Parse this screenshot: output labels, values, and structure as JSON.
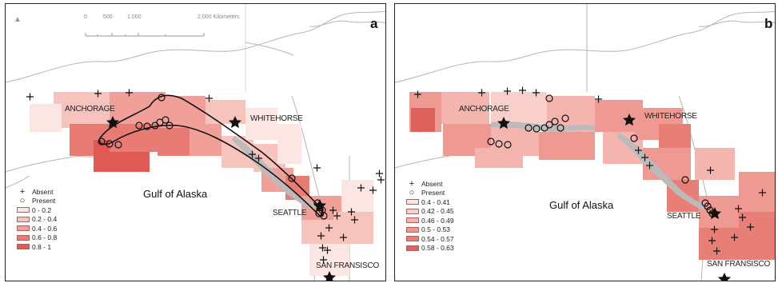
{
  "panels": [
    {
      "id": "a",
      "letter": "a",
      "scale": {
        "t0": "0",
        "t1": "500",
        "t2": "1,000",
        "t3": "2,000 Kilometers"
      },
      "labels": {
        "anchorage": "ANCHORAGE",
        "whitehorse": "WHITEHORSE",
        "seattle": "SEATTLE",
        "sanfran": "SAN FRANSISCO",
        "gulf": "Gulf of Alaska"
      },
      "legend": {
        "absent": "Absent",
        "present": "Present",
        "classes": [
          "0 - 0.2",
          "0.2 - 0.4",
          "0.4 - 0.6",
          "0.6 - 0.8",
          "0.8 - 1"
        ],
        "colors": [
          "#fbe6e4",
          "#f6c3bd",
          "#f0a099",
          "#e87c74",
          "#df5a55"
        ]
      }
    },
    {
      "id": "b",
      "letter": "b",
      "labels": {
        "anchorage": "ANCHORAGE",
        "whitehorse": "WHITEHORSE",
        "seattle": "SEATTLE",
        "sanfran": "SAN FRANSISCO",
        "gulf": "Gulf of Alaska"
      },
      "legend": {
        "absent": "Absent",
        "present": "Present",
        "classes": [
          "0.4 - 0.41",
          "0.42 - 0.45",
          "0.46 - 0.49",
          "0.5 - 0.53",
          "0.54 - 0.57",
          "0.58 - 0.63"
        ],
        "colors": [
          "#fbe6e4",
          "#f8cfca",
          "#f4b5ae",
          "#ee9a92",
          "#e77f77",
          "#de625c"
        ]
      }
    }
  ],
  "icons": {
    "city": "star-icon",
    "absent": "plus-icon",
    "present": "circle-icon",
    "north": "north-arrow-icon"
  }
}
